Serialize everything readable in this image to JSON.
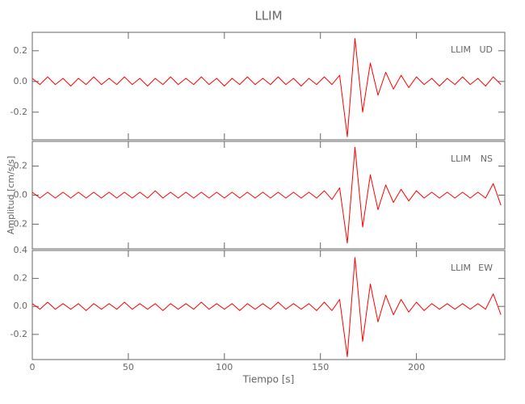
{
  "chart_data": [
    {
      "type": "line",
      "title": "LLIM",
      "station": "LLIM",
      "component": "UD",
      "color": "#ff0000",
      "x": [
        0,
        4,
        8,
        12,
        16,
        20,
        24,
        28,
        32,
        36,
        40,
        44,
        48,
        52,
        56,
        60,
        64,
        68,
        72,
        76,
        80,
        84,
        88,
        92,
        96,
        100,
        104,
        108,
        112,
        116,
        120,
        124,
        128,
        132,
        136,
        140,
        144,
        148,
        152,
        156,
        160,
        164,
        168,
        172,
        176,
        180,
        184,
        188,
        192,
        196,
        200,
        204,
        208,
        212,
        216,
        220,
        224,
        228,
        232,
        236,
        240,
        244
      ],
      "values": [
        0.02,
        -0.02,
        0.03,
        -0.02,
        0.02,
        -0.03,
        0.02,
        -0.02,
        0.03,
        -0.02,
        0.02,
        -0.02,
        0.03,
        -0.02,
        0.02,
        -0.03,
        0.02,
        -0.02,
        0.03,
        -0.02,
        0.02,
        -0.02,
        0.03,
        -0.02,
        0.02,
        -0.03,
        0.02,
        -0.02,
        0.03,
        -0.02,
        0.02,
        -0.02,
        0.03,
        -0.02,
        0.02,
        -0.03,
        0.02,
        -0.02,
        0.03,
        -0.02,
        0.04,
        -0.36,
        0.28,
        -0.2,
        0.12,
        -0.09,
        0.06,
        -0.05,
        0.04,
        -0.04,
        0.03,
        -0.02,
        0.02,
        -0.03,
        0.02,
        -0.02,
        0.03,
        -0.02,
        0.02,
        -0.03,
        0.03,
        -0.02
      ],
      "xlim": [
        0,
        246
      ],
      "ylim": [
        -0.38,
        0.32
      ],
      "yticks": [
        0.2,
        {
          "value": 0,
          "label": "0.0"
        },
        -0.2
      ]
    },
    {
      "type": "line",
      "y_label": "Amplitud [cm/s/s]",
      "station": "LLIM",
      "component": "NS",
      "color": "#ff0000",
      "x": [
        0,
        4,
        8,
        12,
        16,
        20,
        24,
        28,
        32,
        36,
        40,
        44,
        48,
        52,
        56,
        60,
        64,
        68,
        72,
        76,
        80,
        84,
        88,
        92,
        96,
        100,
        104,
        108,
        112,
        116,
        120,
        124,
        128,
        132,
        136,
        140,
        144,
        148,
        152,
        156,
        160,
        164,
        168,
        172,
        176,
        180,
        184,
        188,
        192,
        196,
        200,
        204,
        208,
        212,
        216,
        220,
        224,
        228,
        232,
        236,
        240,
        244
      ],
      "values": [
        0.02,
        -0.02,
        0.02,
        -0.02,
        0.02,
        -0.02,
        0.02,
        -0.02,
        0.02,
        -0.02,
        0.02,
        -0.02,
        0.02,
        -0.02,
        0.02,
        -0.02,
        0.03,
        -0.02,
        0.02,
        -0.02,
        0.02,
        -0.02,
        0.02,
        -0.02,
        0.02,
        -0.02,
        0.02,
        -0.02,
        0.02,
        -0.02,
        0.02,
        -0.02,
        0.02,
        -0.02,
        0.02,
        -0.02,
        0.02,
        -0.02,
        0.03,
        -0.03,
        0.05,
        -0.33,
        0.33,
        -0.22,
        0.14,
        -0.1,
        0.07,
        -0.05,
        0.04,
        -0.04,
        0.03,
        -0.02,
        0.02,
        -0.02,
        0.02,
        -0.02,
        0.02,
        -0.02,
        0.02,
        -0.02,
        0.08,
        -0.07
      ],
      "xlim": [
        0,
        246
      ],
      "ylim": [
        -0.37,
        0.37
      ],
      "yticks": [
        0.2,
        {
          "value": 0,
          "label": "0.0"
        },
        -0.2
      ]
    },
    {
      "type": "line",
      "x_label": "Tiempo [s]",
      "station": "LLIM",
      "component": "EW",
      "color": "#ff0000",
      "x": [
        0,
        4,
        8,
        12,
        16,
        20,
        24,
        28,
        32,
        36,
        40,
        44,
        48,
        52,
        56,
        60,
        64,
        68,
        72,
        76,
        80,
        84,
        88,
        92,
        96,
        100,
        104,
        108,
        112,
        116,
        120,
        124,
        128,
        132,
        136,
        140,
        144,
        148,
        152,
        156,
        160,
        164,
        168,
        172,
        176,
        180,
        184,
        188,
        192,
        196,
        200,
        204,
        208,
        212,
        216,
        220,
        224,
        228,
        232,
        236,
        240,
        244
      ],
      "values": [
        0.02,
        -0.02,
        0.03,
        -0.02,
        0.02,
        -0.02,
        0.02,
        -0.03,
        0.02,
        -0.02,
        0.02,
        -0.02,
        0.03,
        -0.02,
        0.02,
        -0.02,
        0.02,
        -0.03,
        0.02,
        -0.02,
        0.02,
        -0.02,
        0.03,
        -0.02,
        0.02,
        -0.02,
        0.02,
        -0.03,
        0.02,
        -0.02,
        0.02,
        -0.02,
        0.03,
        -0.02,
        0.02,
        -0.02,
        0.02,
        -0.03,
        0.03,
        -0.03,
        0.05,
        -0.36,
        0.35,
        -0.25,
        0.16,
        -0.11,
        0.08,
        -0.06,
        0.05,
        -0.04,
        0.03,
        -0.03,
        0.02,
        -0.02,
        0.02,
        -0.02,
        0.02,
        -0.02,
        0.02,
        -0.02,
        0.09,
        -0.06
      ],
      "xlim": [
        0,
        246
      ],
      "ylim": [
        -0.38,
        0.4
      ],
      "yticks": [
        0.4,
        0.2,
        {
          "value": 0,
          "label": "0.0"
        },
        -0.2
      ],
      "xticks": [
        0,
        50,
        100,
        150,
        200
      ]
    }
  ]
}
